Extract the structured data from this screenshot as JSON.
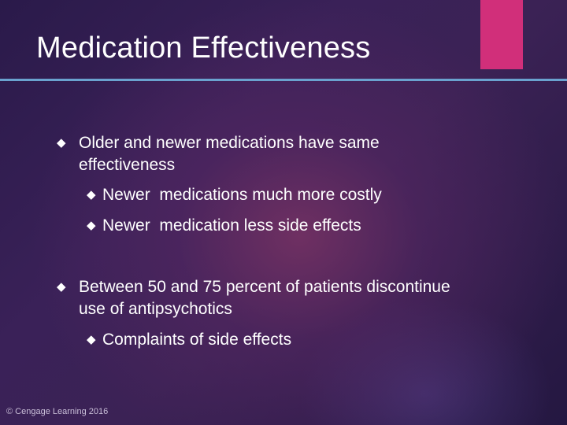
{
  "slide": {
    "title": "Medication Effectiveness",
    "bullets": [
      {
        "text": "Older and newer medications have same effectiveness",
        "sub": [
          "Newer  medications much more costly",
          "Newer  medication less side effects"
        ]
      },
      {
        "text": "Between 50 and 75 percent of patients discontinue use of antipsychotics",
        "sub": [
          "Complaints of side effects"
        ]
      }
    ],
    "footer": "© Cengage Learning 2016"
  },
  "icons": {
    "bullet": "diamond-bullet-icon"
  },
  "colors": {
    "accent": "#d12f7a",
    "rule": "#6aa2cf"
  }
}
